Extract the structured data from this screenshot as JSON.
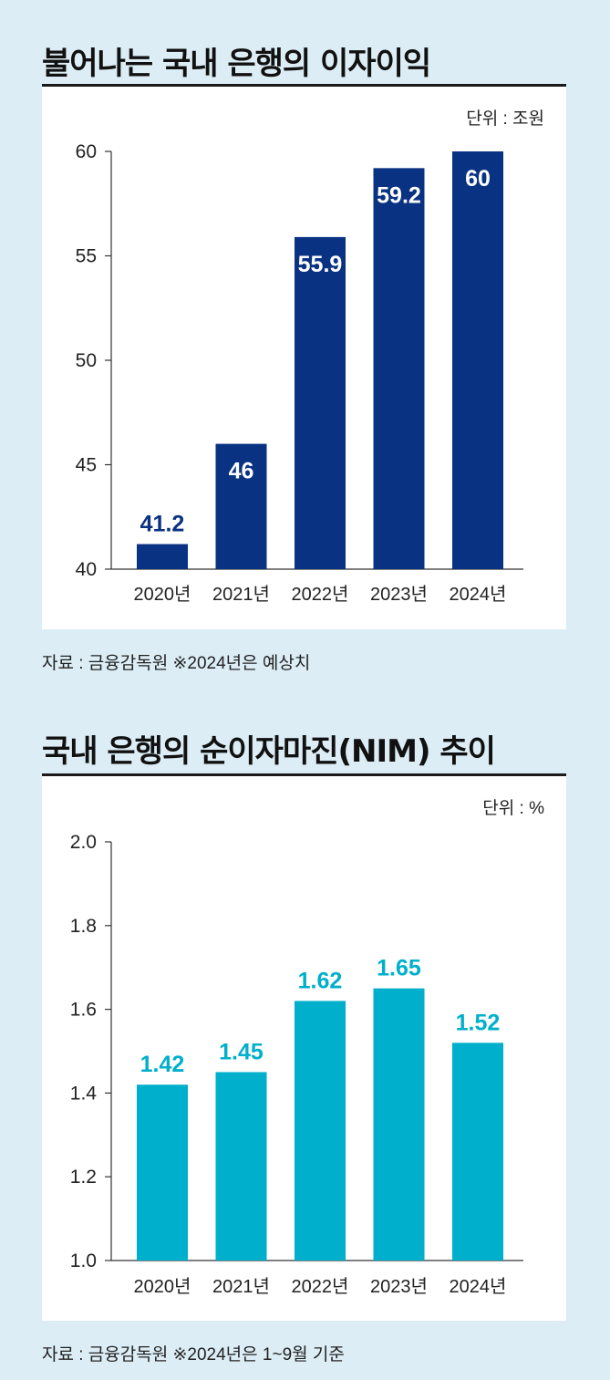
{
  "colors": {
    "background": "#dcedf5",
    "panel": "#ffffff",
    "chart1_bar": "#0a3282",
    "chart2_bar": "#00afcc"
  },
  "chart_data": [
    {
      "type": "bar",
      "title": "불어나는 국내 은행의 이자이익",
      "unit": "단위 : 조원",
      "source": "자료 : 금융감독원 ※2024년은 예상치",
      "categories": [
        "2020년",
        "2021년",
        "2022년",
        "2023년",
        "2024년"
      ],
      "values": [
        41.2,
        46,
        55.9,
        59.2,
        60
      ],
      "value_labels": [
        "41.2",
        "46",
        "55.9",
        "59.2",
        "60"
      ],
      "yticks": [
        "40",
        "45",
        "50",
        "55",
        "60"
      ],
      "ylim": [
        40,
        60
      ],
      "xlabel": "",
      "ylabel": ""
    },
    {
      "type": "bar",
      "title": "국내 은행의 순이자마진(NIM) 추이",
      "unit": "단위 : %",
      "source": "자료 : 금융감독원 ※2024년은 1~9월 기준",
      "categories": [
        "2020년",
        "2021년",
        "2022년",
        "2023년",
        "2024년"
      ],
      "values": [
        1.42,
        1.45,
        1.62,
        1.65,
        1.52
      ],
      "value_labels": [
        "1.42",
        "1.45",
        "1.62",
        "1.65",
        "1.52"
      ],
      "yticks": [
        "1.0",
        "1.2",
        "1.4",
        "1.6",
        "1.8",
        "2.0"
      ],
      "ylim": [
        1.0,
        2.0
      ],
      "xlabel": "",
      "ylabel": ""
    }
  ]
}
